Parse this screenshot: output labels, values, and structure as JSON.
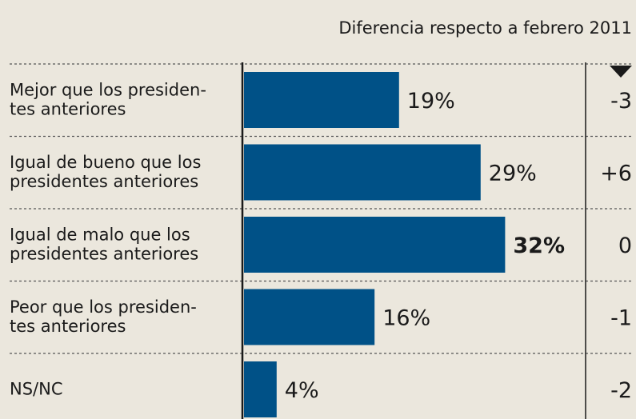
{
  "chart_data": {
    "type": "bar",
    "orientation": "horizontal",
    "column_title": "Diferencia respecto a febrero 2011",
    "categories": [
      [
        "Mejor que los presiden-",
        "tes anteriores"
      ],
      [
        "Igual de bueno que los",
        "presidentes anteriores"
      ],
      [
        "Igual de malo que los",
        "presidentes anteriores"
      ],
      [
        "Peor que los presiden-",
        "tes anteriores"
      ],
      [
        "NS/NC"
      ]
    ],
    "values": [
      19,
      29,
      32,
      16,
      4
    ],
    "value_labels": [
      "19%",
      "29%",
      "32%",
      "16%",
      "4%"
    ],
    "differences": [
      "-3",
      "+6",
      "0",
      "-1",
      "-2"
    ],
    "highlight": 2,
    "color": "#005187"
  }
}
